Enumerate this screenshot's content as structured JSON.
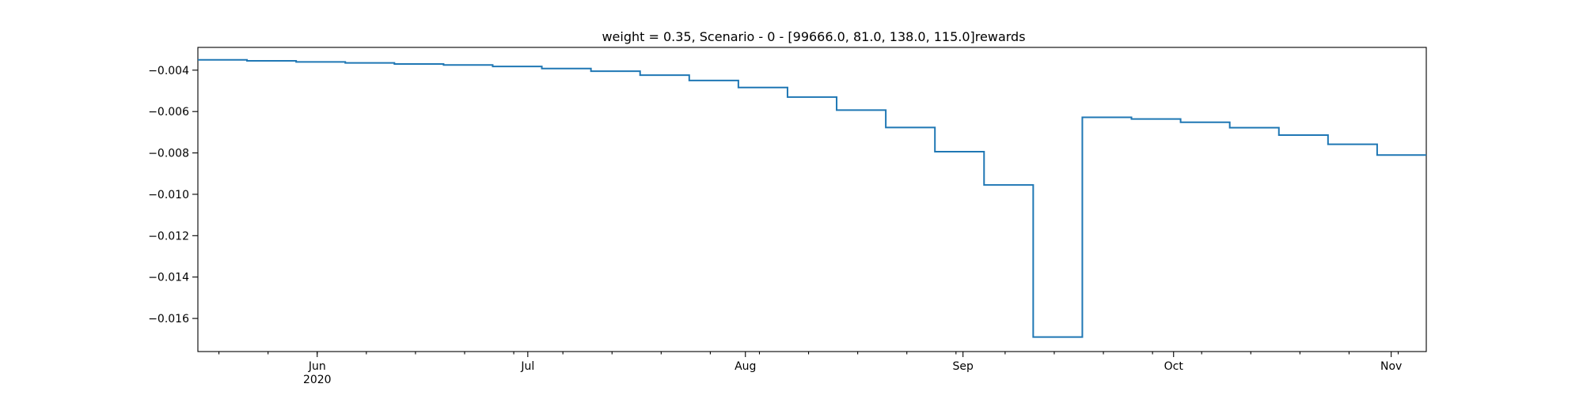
{
  "chart_data": {
    "type": "line",
    "step": "post",
    "title": "weight = 0.35, Scenario - 0 - [99666.0, 81.0, 138.0, 115.0]rewards",
    "xlabel": "",
    "ylabel": "",
    "xlim": [
      "2020-05-15",
      "2020-11-06"
    ],
    "ylim": [
      -0.0176,
      -0.0029
    ],
    "grid": false,
    "legend": "none",
    "x_ticks": [
      {
        "date": "2020-06-01",
        "label": "Jun",
        "sublabel": "2020"
      },
      {
        "date": "2020-07-01",
        "label": "Jul",
        "sublabel": ""
      },
      {
        "date": "2020-08-01",
        "label": "Aug",
        "sublabel": ""
      },
      {
        "date": "2020-09-01",
        "label": "Sep",
        "sublabel": ""
      },
      {
        "date": "2020-10-01",
        "label": "Oct",
        "sublabel": ""
      },
      {
        "date": "2020-11-01",
        "label": "Nov",
        "sublabel": ""
      }
    ],
    "y_ticks": [
      {
        "value": -0.004,
        "label": "−0.004"
      },
      {
        "value": -0.006,
        "label": "−0.006"
      },
      {
        "value": -0.008,
        "label": "−0.008"
      },
      {
        "value": -0.01,
        "label": "−0.010"
      },
      {
        "value": -0.012,
        "label": "−0.012"
      },
      {
        "value": -0.014,
        "label": "−0.014"
      },
      {
        "value": -0.016,
        "label": "−0.016"
      }
    ],
    "series": [
      {
        "color": "#1f77b4",
        "x": [
          "2020-05-15",
          "2020-05-22",
          "2020-05-29",
          "2020-06-05",
          "2020-06-12",
          "2020-06-19",
          "2020-06-26",
          "2020-07-03",
          "2020-07-10",
          "2020-07-17",
          "2020-07-24",
          "2020-07-31",
          "2020-08-07",
          "2020-08-14",
          "2020-08-21",
          "2020-08-28",
          "2020-09-04",
          "2020-09-11",
          "2020-09-18",
          "2020-09-25",
          "2020-10-02",
          "2020-10-09",
          "2020-10-16",
          "2020-10-23",
          "2020-10-30",
          "2020-11-06"
        ],
        "y": [
          -0.0035,
          -0.00355,
          -0.0036,
          -0.00365,
          -0.0037,
          -0.00375,
          -0.00382,
          -0.00392,
          -0.00405,
          -0.00424,
          -0.0045,
          -0.00484,
          -0.0053,
          -0.00593,
          -0.00677,
          -0.00794,
          -0.00955,
          -0.0169,
          -0.00628,
          -0.00636,
          -0.00652,
          -0.00678,
          -0.00714,
          -0.00758,
          -0.0081,
          -0.0081
        ]
      }
    ]
  }
}
